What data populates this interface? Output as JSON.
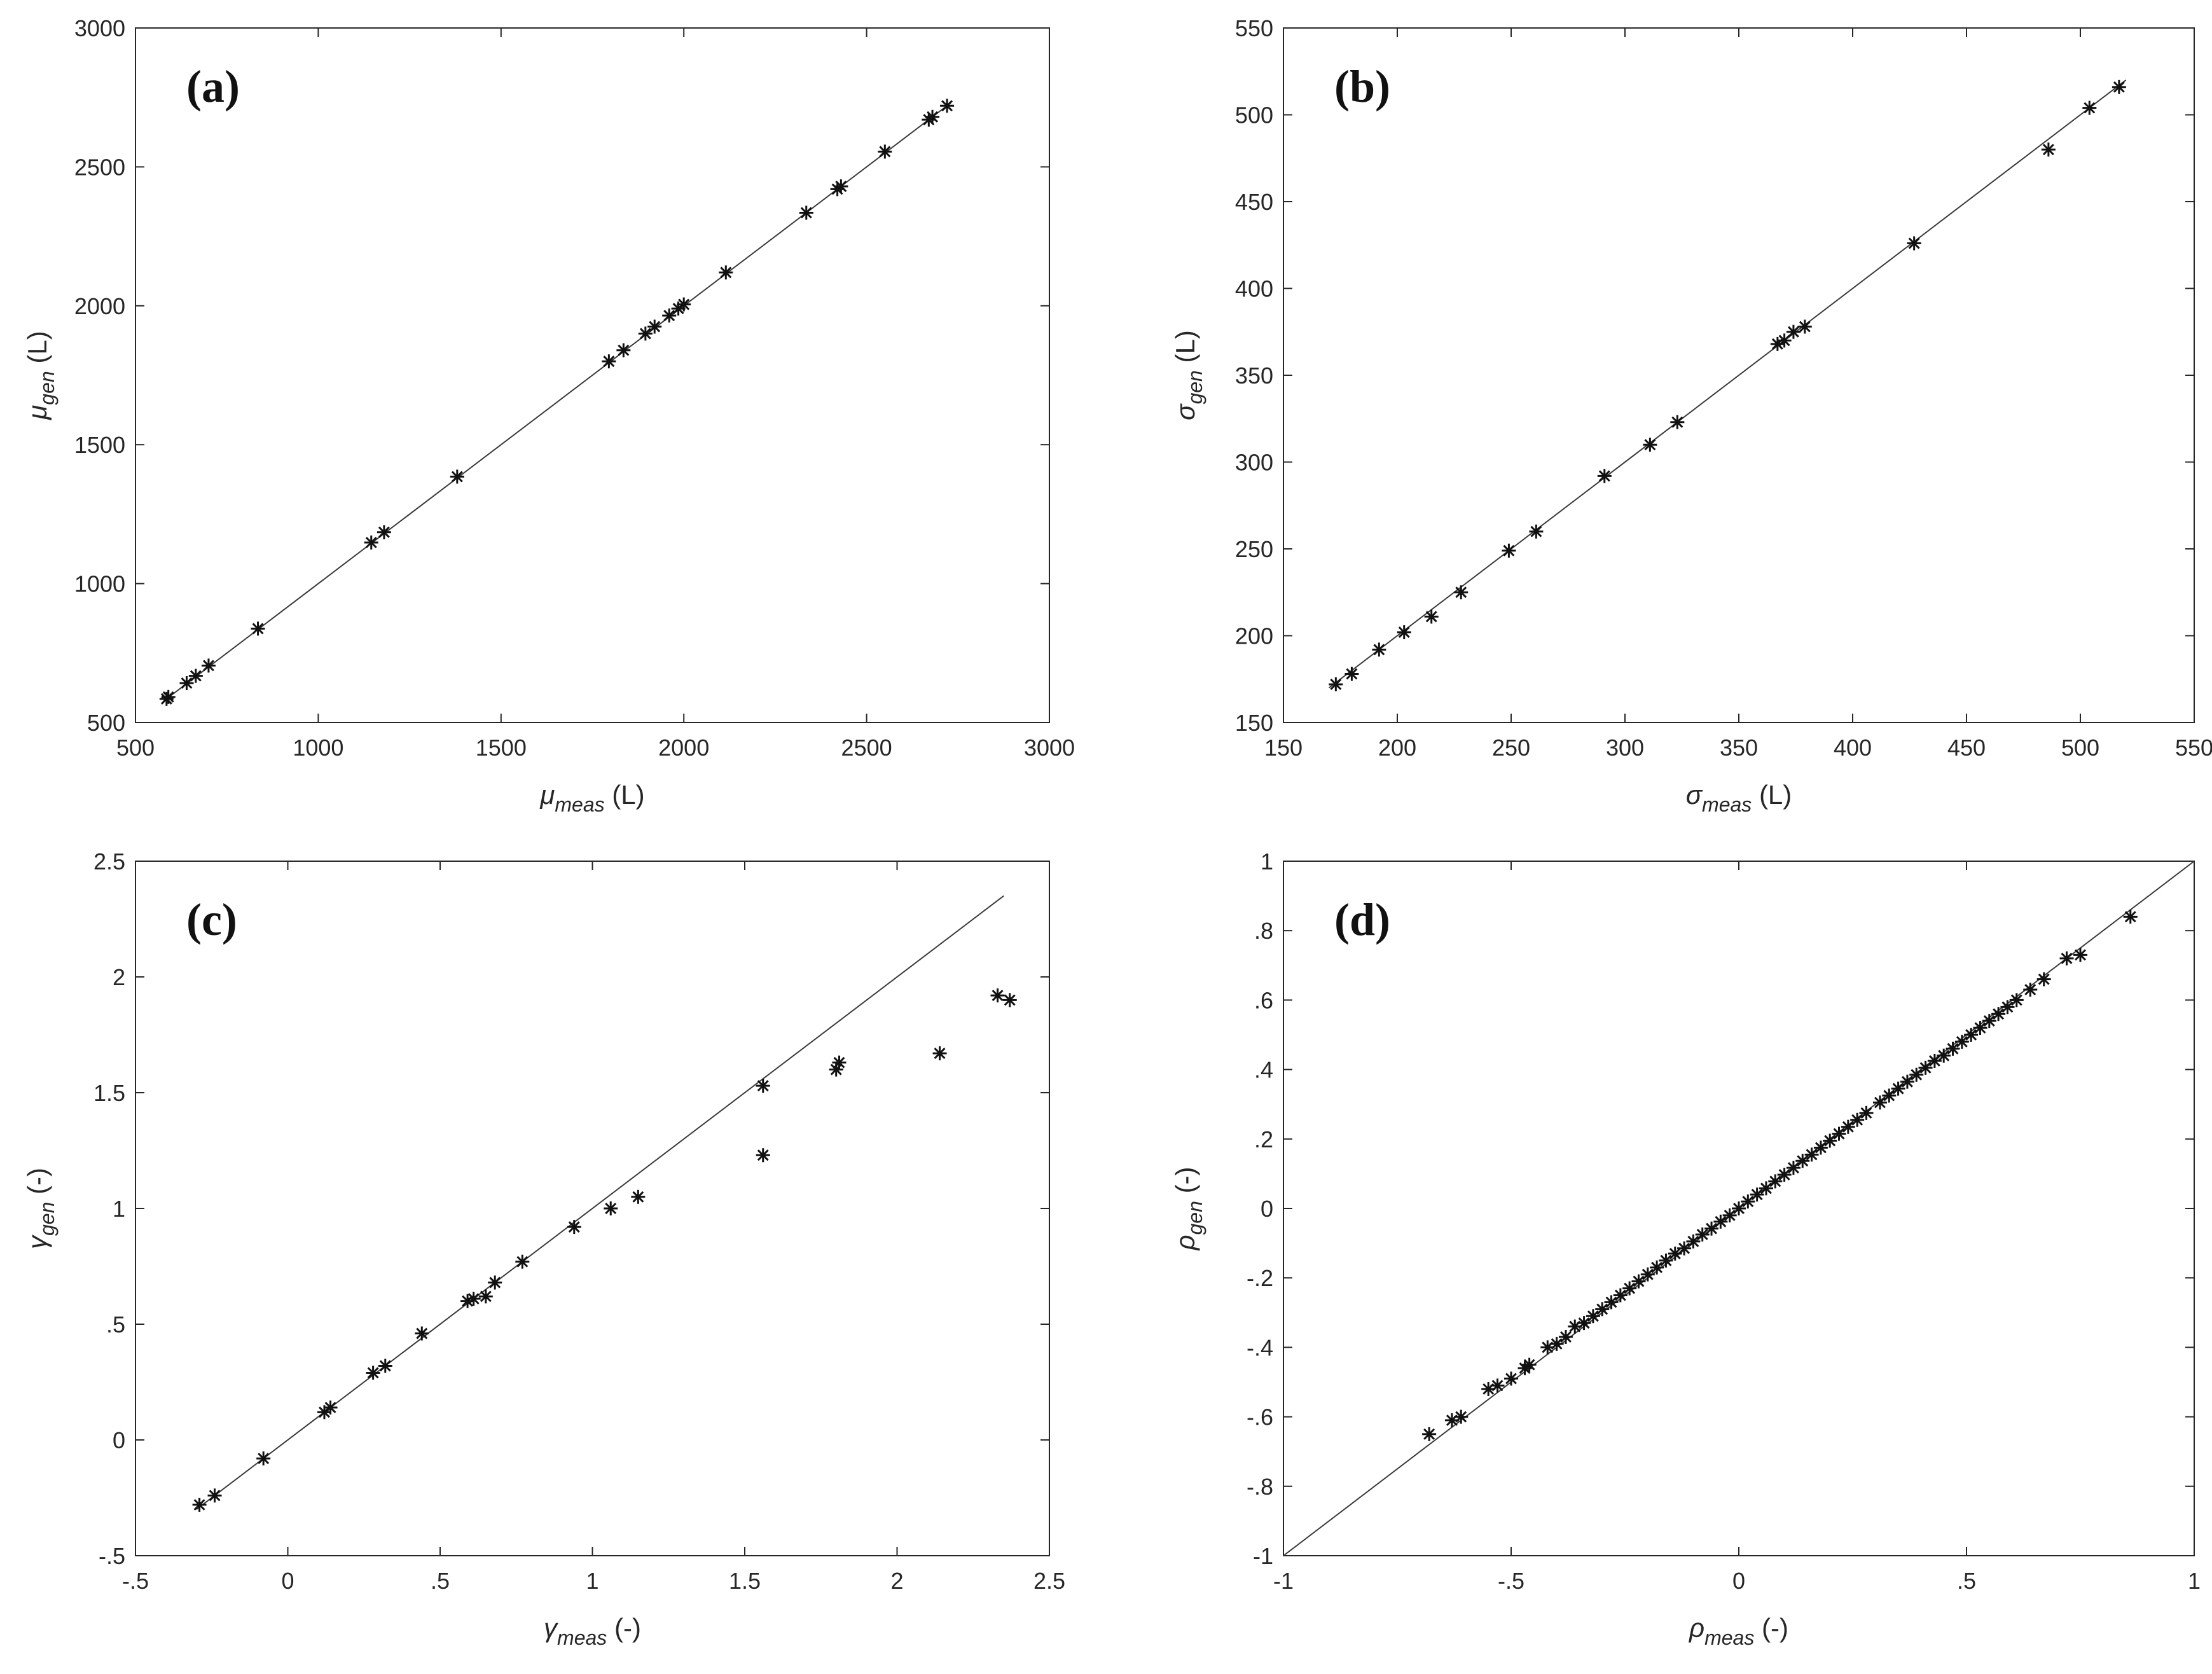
{
  "chart_data": [
    {
      "type": "scatter",
      "panel_label": "(a)",
      "xlabel": {
        "symbol": "μ",
        "sub": "meas",
        "unit": " (L)"
      },
      "ylabel": {
        "symbol": "μ",
        "sub": "gen",
        "unit": " (L)"
      },
      "xlim": [
        500,
        3000
      ],
      "ylim": [
        500,
        3000
      ],
      "xticks": [
        500,
        1000,
        1500,
        2000,
        2500,
        3000
      ],
      "yticks": [
        500,
        1000,
        1500,
        2000,
        2500,
        3000
      ],
      "line": [
        [
          580,
          580
        ],
        [
          2730,
          2730
        ]
      ],
      "points": [
        [
          585,
          585
        ],
        [
          590,
          592
        ],
        [
          640,
          642
        ],
        [
          665,
          668
        ],
        [
          700,
          705
        ],
        [
          835,
          838
        ],
        [
          1145,
          1148
        ],
        [
          1180,
          1185
        ],
        [
          1380,
          1385
        ],
        [
          1795,
          1800
        ],
        [
          1835,
          1840
        ],
        [
          1895,
          1900
        ],
        [
          1920,
          1925
        ],
        [
          1960,
          1965
        ],
        [
          1985,
          1990
        ],
        [
          2000,
          2005
        ],
        [
          2115,
          2120
        ],
        [
          2335,
          2335
        ],
        [
          2420,
          2420
        ],
        [
          2430,
          2430
        ],
        [
          2550,
          2555
        ],
        [
          2670,
          2670
        ],
        [
          2680,
          2680
        ],
        [
          2720,
          2720
        ]
      ]
    },
    {
      "type": "scatter",
      "panel_label": "(b)",
      "xlabel": {
        "symbol": "σ",
        "sub": "meas",
        "unit": " (L)"
      },
      "ylabel": {
        "symbol": "σ",
        "sub": "gen",
        "unit": " (L)"
      },
      "xlim": [
        150,
        550
      ],
      "ylim": [
        150,
        550
      ],
      "xticks": [
        150,
        200,
        250,
        300,
        350,
        400,
        450,
        500,
        550
      ],
      "yticks": [
        150,
        200,
        250,
        300,
        350,
        400,
        450,
        500,
        550
      ],
      "line": [
        [
          170,
          170
        ],
        [
          520,
          520
        ]
      ],
      "points": [
        [
          173,
          172
        ],
        [
          180,
          178
        ],
        [
          192,
          192
        ],
        [
          203,
          202
        ],
        [
          215,
          211
        ],
        [
          228,
          225
        ],
        [
          249,
          249
        ],
        [
          261,
          260
        ],
        [
          291,
          292
        ],
        [
          311,
          310
        ],
        [
          323,
          323
        ],
        [
          367,
          368
        ],
        [
          370,
          370
        ],
        [
          374,
          375
        ],
        [
          379,
          378
        ],
        [
          427,
          426
        ],
        [
          486,
          480
        ],
        [
          504,
          504
        ],
        [
          517,
          516
        ]
      ]
    },
    {
      "type": "scatter",
      "panel_label": "(c)",
      "xlabel": {
        "symbol": "γ",
        "sub": "meas",
        "unit": " (-)"
      },
      "ylabel": {
        "symbol": "γ",
        "sub": "gen",
        "unit": " (-)"
      },
      "xlim": [
        -0.5,
        2.5
      ],
      "ylim": [
        -0.5,
        2.5
      ],
      "xticks": [
        -0.5,
        0,
        0.5,
        1,
        1.5,
        2,
        2.5
      ],
      "yticks": [
        -0.5,
        0,
        0.5,
        1,
        1.5,
        2,
        2.5
      ],
      "line": [
        [
          -0.3,
          -0.3
        ],
        [
          2.35,
          2.35
        ]
      ],
      "points": [
        [
          -0.29,
          -0.28
        ],
        [
          -0.24,
          -0.24
        ],
        [
          -0.08,
          -0.08
        ],
        [
          0.12,
          0.12
        ],
        [
          0.14,
          0.14
        ],
        [
          0.28,
          0.29
        ],
        [
          0.32,
          0.32
        ],
        [
          0.44,
          0.46
        ],
        [
          0.59,
          0.6
        ],
        [
          0.61,
          0.61
        ],
        [
          0.65,
          0.62
        ],
        [
          0.68,
          0.68
        ],
        [
          0.77,
          0.77
        ],
        [
          0.94,
          0.92
        ],
        [
          1.06,
          1.0
        ],
        [
          1.15,
          1.05
        ],
        [
          1.56,
          1.53
        ],
        [
          1.56,
          1.23
        ],
        [
          1.8,
          1.6
        ],
        [
          1.81,
          1.63
        ],
        [
          2.14,
          1.67
        ],
        [
          2.33,
          1.92
        ],
        [
          2.37,
          1.9
        ]
      ]
    },
    {
      "type": "scatter",
      "panel_label": "(d)",
      "xlabel": {
        "symbol": "ρ",
        "sub": "meas",
        "unit": " (-)"
      },
      "ylabel": {
        "symbol": "ρ",
        "sub": "gen",
        "unit": " (-)"
      },
      "xlim": [
        -1,
        1
      ],
      "ylim": [
        -1,
        1
      ],
      "xticks": [
        -1,
        -0.5,
        0,
        0.5,
        1
      ],
      "yticks": [
        -1,
        -0.8,
        -0.6,
        -0.4,
        -0.2,
        0,
        0.2,
        0.4,
        0.6,
        0.8,
        1
      ],
      "line": [
        [
          -1,
          -1
        ],
        [
          1,
          1
        ]
      ],
      "points": [
        [
          -0.68,
          -0.65
        ],
        [
          -0.63,
          -0.61
        ],
        [
          -0.61,
          -0.6
        ],
        [
          -0.55,
          -0.52
        ],
        [
          -0.53,
          -0.51
        ],
        [
          -0.5,
          -0.49
        ],
        [
          -0.47,
          -0.46
        ],
        [
          -0.46,
          -0.45
        ],
        [
          -0.42,
          -0.4
        ],
        [
          -0.4,
          -0.39
        ],
        [
          -0.38,
          -0.37
        ],
        [
          -0.36,
          -0.34
        ],
        [
          -0.34,
          -0.33
        ],
        [
          -0.32,
          -0.31
        ],
        [
          -0.3,
          -0.29
        ],
        [
          -0.28,
          -0.27
        ],
        [
          -0.26,
          -0.25
        ],
        [
          -0.24,
          -0.23
        ],
        [
          -0.22,
          -0.21
        ],
        [
          -0.2,
          -0.19
        ],
        [
          -0.18,
          -0.17
        ],
        [
          -0.16,
          -0.15
        ],
        [
          -0.14,
          -0.13
        ],
        [
          -0.12,
          -0.115
        ],
        [
          -0.1,
          -0.095
        ],
        [
          -0.08,
          -0.075
        ],
        [
          -0.06,
          -0.058
        ],
        [
          -0.04,
          -0.038
        ],
        [
          -0.02,
          -0.02
        ],
        [
          0.0,
          0.0
        ],
        [
          0.02,
          0.02
        ],
        [
          0.04,
          0.04
        ],
        [
          0.06,
          0.058
        ],
        [
          0.08,
          0.078
        ],
        [
          0.1,
          0.097
        ],
        [
          0.12,
          0.117
        ],
        [
          0.14,
          0.137
        ],
        [
          0.16,
          0.155
        ],
        [
          0.18,
          0.175
        ],
        [
          0.2,
          0.195
        ],
        [
          0.22,
          0.215
        ],
        [
          0.24,
          0.235
        ],
        [
          0.26,
          0.255
        ],
        [
          0.28,
          0.275
        ],
        [
          0.31,
          0.305
        ],
        [
          0.33,
          0.325
        ],
        [
          0.35,
          0.345
        ],
        [
          0.37,
          0.365
        ],
        [
          0.39,
          0.385
        ],
        [
          0.41,
          0.405
        ],
        [
          0.43,
          0.425
        ],
        [
          0.45,
          0.44
        ],
        [
          0.47,
          0.46
        ],
        [
          0.49,
          0.48
        ],
        [
          0.51,
          0.5
        ],
        [
          0.53,
          0.52
        ],
        [
          0.55,
          0.54
        ],
        [
          0.57,
          0.56
        ],
        [
          0.59,
          0.58
        ],
        [
          0.61,
          0.6
        ],
        [
          0.64,
          0.63
        ],
        [
          0.67,
          0.66
        ],
        [
          0.72,
          0.72
        ],
        [
          0.75,
          0.73
        ],
        [
          0.86,
          0.84
        ]
      ]
    }
  ]
}
